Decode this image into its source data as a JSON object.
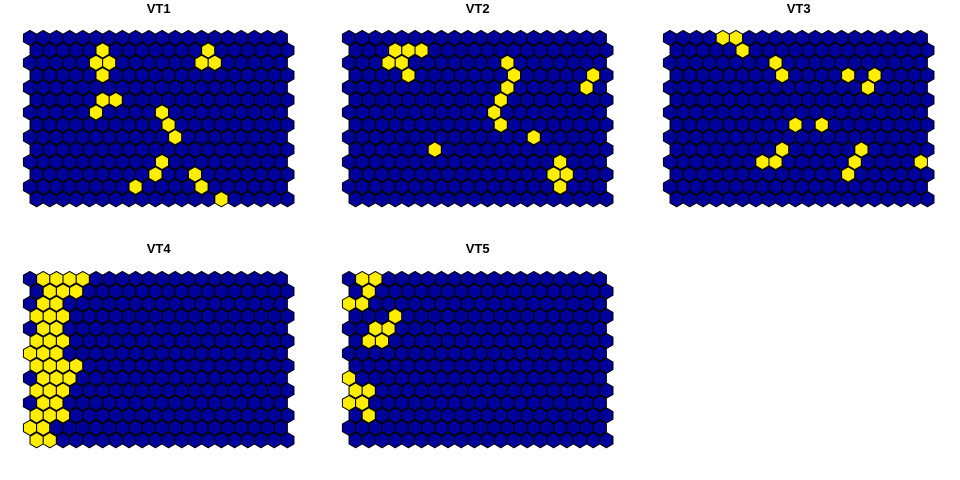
{
  "chart_data": {
    "type": "heatmap",
    "grid": {
      "columns": 20,
      "rows": 14,
      "topology": "hexagonal"
    },
    "colors": {
      "off": "#00009b",
      "on": "#ffee00",
      "outline": "#000000"
    },
    "panels": [
      {
        "title": "VT1",
        "on_cells": [
          [
            1,
            5
          ],
          [
            2,
            5
          ],
          [
            2,
            6
          ],
          [
            3,
            5
          ],
          [
            1,
            13
          ],
          [
            2,
            13
          ],
          [
            2,
            14
          ],
          [
            6,
            10
          ],
          [
            7,
            10
          ],
          [
            8,
            11
          ],
          [
            5,
            5
          ],
          [
            5,
            6
          ],
          [
            6,
            5
          ],
          [
            10,
            10
          ],
          [
            11,
            9
          ],
          [
            12,
            8
          ],
          [
            11,
            12
          ],
          [
            12,
            13
          ],
          [
            13,
            14
          ],
          [
            13,
            14
          ],
          [
            15,
            6
          ],
          [
            16,
            5
          ],
          [
            13,
            14
          ],
          [
            16,
            10
          ]
        ]
      },
      {
        "title": "VT2",
        "on_cells": [
          [
            1,
            3
          ],
          [
            1,
            4
          ],
          [
            1,
            5
          ],
          [
            2,
            3
          ],
          [
            2,
            4
          ],
          [
            3,
            4
          ],
          [
            2,
            12
          ],
          [
            3,
            12
          ],
          [
            4,
            12
          ],
          [
            5,
            11
          ],
          [
            6,
            11
          ],
          [
            3,
            18
          ],
          [
            4,
            18
          ],
          [
            8,
            14
          ],
          [
            7,
            11
          ],
          [
            9,
            6
          ],
          [
            10,
            16
          ],
          [
            11,
            15
          ],
          [
            11,
            16
          ],
          [
            12,
            16
          ],
          [
            15,
            4
          ],
          [
            15,
            5
          ],
          [
            16,
            4
          ],
          [
            16,
            5
          ],
          [
            15,
            5
          ],
          [
            16,
            6
          ],
          [
            15,
            10
          ],
          [
            16,
            4
          ],
          [
            18,
            10
          ]
        ]
      },
      {
        "title": "VT3",
        "on_cells": [
          [
            0,
            4
          ],
          [
            0,
            5
          ],
          [
            1,
            5
          ],
          [
            2,
            8
          ],
          [
            3,
            8
          ],
          [
            3,
            13
          ],
          [
            3,
            15
          ],
          [
            4,
            15
          ],
          [
            7,
            9
          ],
          [
            7,
            11
          ],
          [
            9,
            8
          ],
          [
            10,
            8
          ],
          [
            10,
            7
          ],
          [
            9,
            14
          ],
          [
            10,
            14
          ],
          [
            11,
            13
          ],
          [
            10,
            19
          ],
          [
            15,
            8
          ],
          [
            17,
            13
          ],
          [
            18,
            12
          ],
          [
            18,
            13
          ],
          [
            17,
            13
          ],
          [
            18,
            1
          ],
          [
            19,
            1
          ],
          [
            18,
            6
          ],
          [
            18,
            19
          ],
          [
            19,
            19
          ],
          [
            17,
            13
          ]
        ]
      },
      {
        "title": "VT4",
        "on_cells": [
          [
            0,
            1
          ],
          [
            0,
            2
          ],
          [
            0,
            3
          ],
          [
            0,
            4
          ],
          [
            1,
            1
          ],
          [
            1,
            2
          ],
          [
            1,
            3
          ],
          [
            2,
            1
          ],
          [
            2,
            2
          ],
          [
            3,
            0
          ],
          [
            3,
            1
          ],
          [
            3,
            2
          ],
          [
            4,
            1
          ],
          [
            4,
            2
          ],
          [
            5,
            0
          ],
          [
            5,
            1
          ],
          [
            5,
            2
          ],
          [
            6,
            0
          ],
          [
            6,
            1
          ],
          [
            6,
            2
          ],
          [
            7,
            0
          ],
          [
            7,
            1
          ],
          [
            7,
            2
          ],
          [
            7,
            3
          ],
          [
            8,
            1
          ],
          [
            8,
            2
          ],
          [
            8,
            3
          ],
          [
            9,
            0
          ],
          [
            9,
            1
          ],
          [
            9,
            2
          ],
          [
            10,
            1
          ],
          [
            10,
            2
          ],
          [
            11,
            0
          ],
          [
            11,
            1
          ],
          [
            11,
            2
          ],
          [
            12,
            0
          ],
          [
            12,
            1
          ],
          [
            13,
            1
          ],
          [
            13,
            0
          ]
        ]
      },
      {
        "title": "VT5",
        "on_cells": [
          [
            0,
            1
          ],
          [
            0,
            2
          ],
          [
            1,
            1
          ],
          [
            2,
            0
          ],
          [
            2,
            1
          ],
          [
            3,
            3
          ],
          [
            4,
            2
          ],
          [
            4,
            3
          ],
          [
            5,
            1
          ],
          [
            5,
            2
          ],
          [
            8,
            0
          ],
          [
            9,
            0
          ],
          [
            9,
            1
          ],
          [
            10,
            0
          ],
          [
            10,
            1
          ],
          [
            11,
            1
          ]
        ]
      }
    ]
  }
}
